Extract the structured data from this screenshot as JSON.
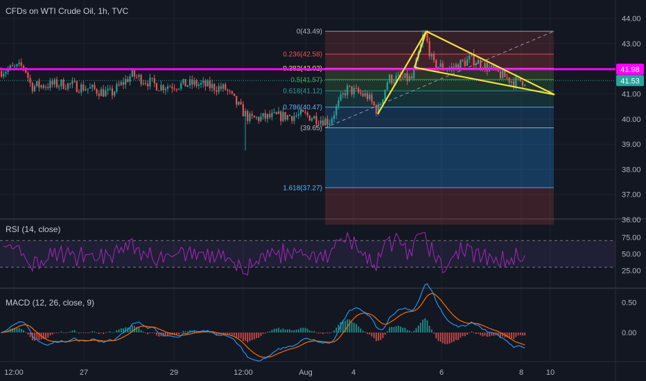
{
  "colors": {
    "background": "#131722",
    "grid": "#1e222d",
    "up": "#26a69a",
    "down": "#ef5350",
    "magenta": "#ff00ff",
    "yellow": "#f7e13b",
    "rsi": "#9c27b0",
    "macd": "#2196f3",
    "signal": "#ff6d00"
  },
  "chart_data": [
    {
      "type": "candlestick",
      "title": "CFDs on WTI Crude Oil, 1h, TVC",
      "xlabel": "",
      "ylabel": "",
      "x_ticks": [
        "12:00",
        "27",
        "29",
        "12:00",
        "Aug",
        "4",
        "6",
        "8",
        "10"
      ],
      "y_ticks": [
        44.0,
        43.0,
        42.0,
        41.0,
        40.0,
        39.0,
        38.0,
        37.0,
        36.0
      ],
      "y_tick_labels": [
        "44.00",
        "43.00",
        "42.00",
        "41.00",
        "40.00",
        "39.00",
        "38.00",
        "37.00",
        "36.00"
      ],
      "ylim": [
        35.85,
        44.3
      ],
      "horizontal_line": {
        "value": 41.98,
        "label": "41.98"
      },
      "last_price": {
        "value": 41.53,
        "label": "41.53"
      },
      "fibonacci": {
        "levels": [
          {
            "ratio": "0",
            "price": 43.49,
            "label": "0(43.49)",
            "color": "#b2b5be"
          },
          {
            "ratio": "0.236",
            "price": 42.58,
            "label": "0.236(42.58)",
            "color": "#ef5350"
          },
          {
            "ratio": "0.382",
            "price": 42.02,
            "label": "0.382(42.02)",
            "color": "#e9e96b"
          },
          {
            "ratio": "0.5",
            "price": 41.57,
            "label": "0.5(41.57)",
            "color": "#4caf50"
          },
          {
            "ratio": "0.618",
            "price": 41.12,
            "label": "0.618(41.12)",
            "color": "#26a69a"
          },
          {
            "ratio": "0.786",
            "price": 40.47,
            "label": "0.786(40.47)",
            "color": "#64b5f6"
          },
          {
            "ratio": "1",
            "price": 39.65,
            "label": "(39.65)",
            "color": "#b2b5be"
          },
          {
            "ratio": "1.618",
            "price": 37.27,
            "label": "1.618(37.27)",
            "color": "#64b5f6"
          }
        ],
        "zone_bottom": 35.8
      },
      "pattern_prices": [
        40.2,
        43.49,
        42.05,
        41.6,
        40.97
      ]
    },
    {
      "type": "line",
      "title": "RSI (14, close)",
      "y_ticks": [
        75,
        50,
        25
      ],
      "y_tick_labels": [
        "75.00",
        "50.00",
        "25.00"
      ],
      "bands": [
        70,
        30
      ],
      "ylim": [
        15,
        85
      ]
    },
    {
      "type": "line",
      "title": "MACD (12, 26, close, 9)",
      "y_ticks": [
        0.5,
        0.0
      ],
      "y_tick_labels": [
        "0.50",
        "0.00"
      ],
      "ylim": [
        -0.4,
        0.62
      ]
    }
  ]
}
